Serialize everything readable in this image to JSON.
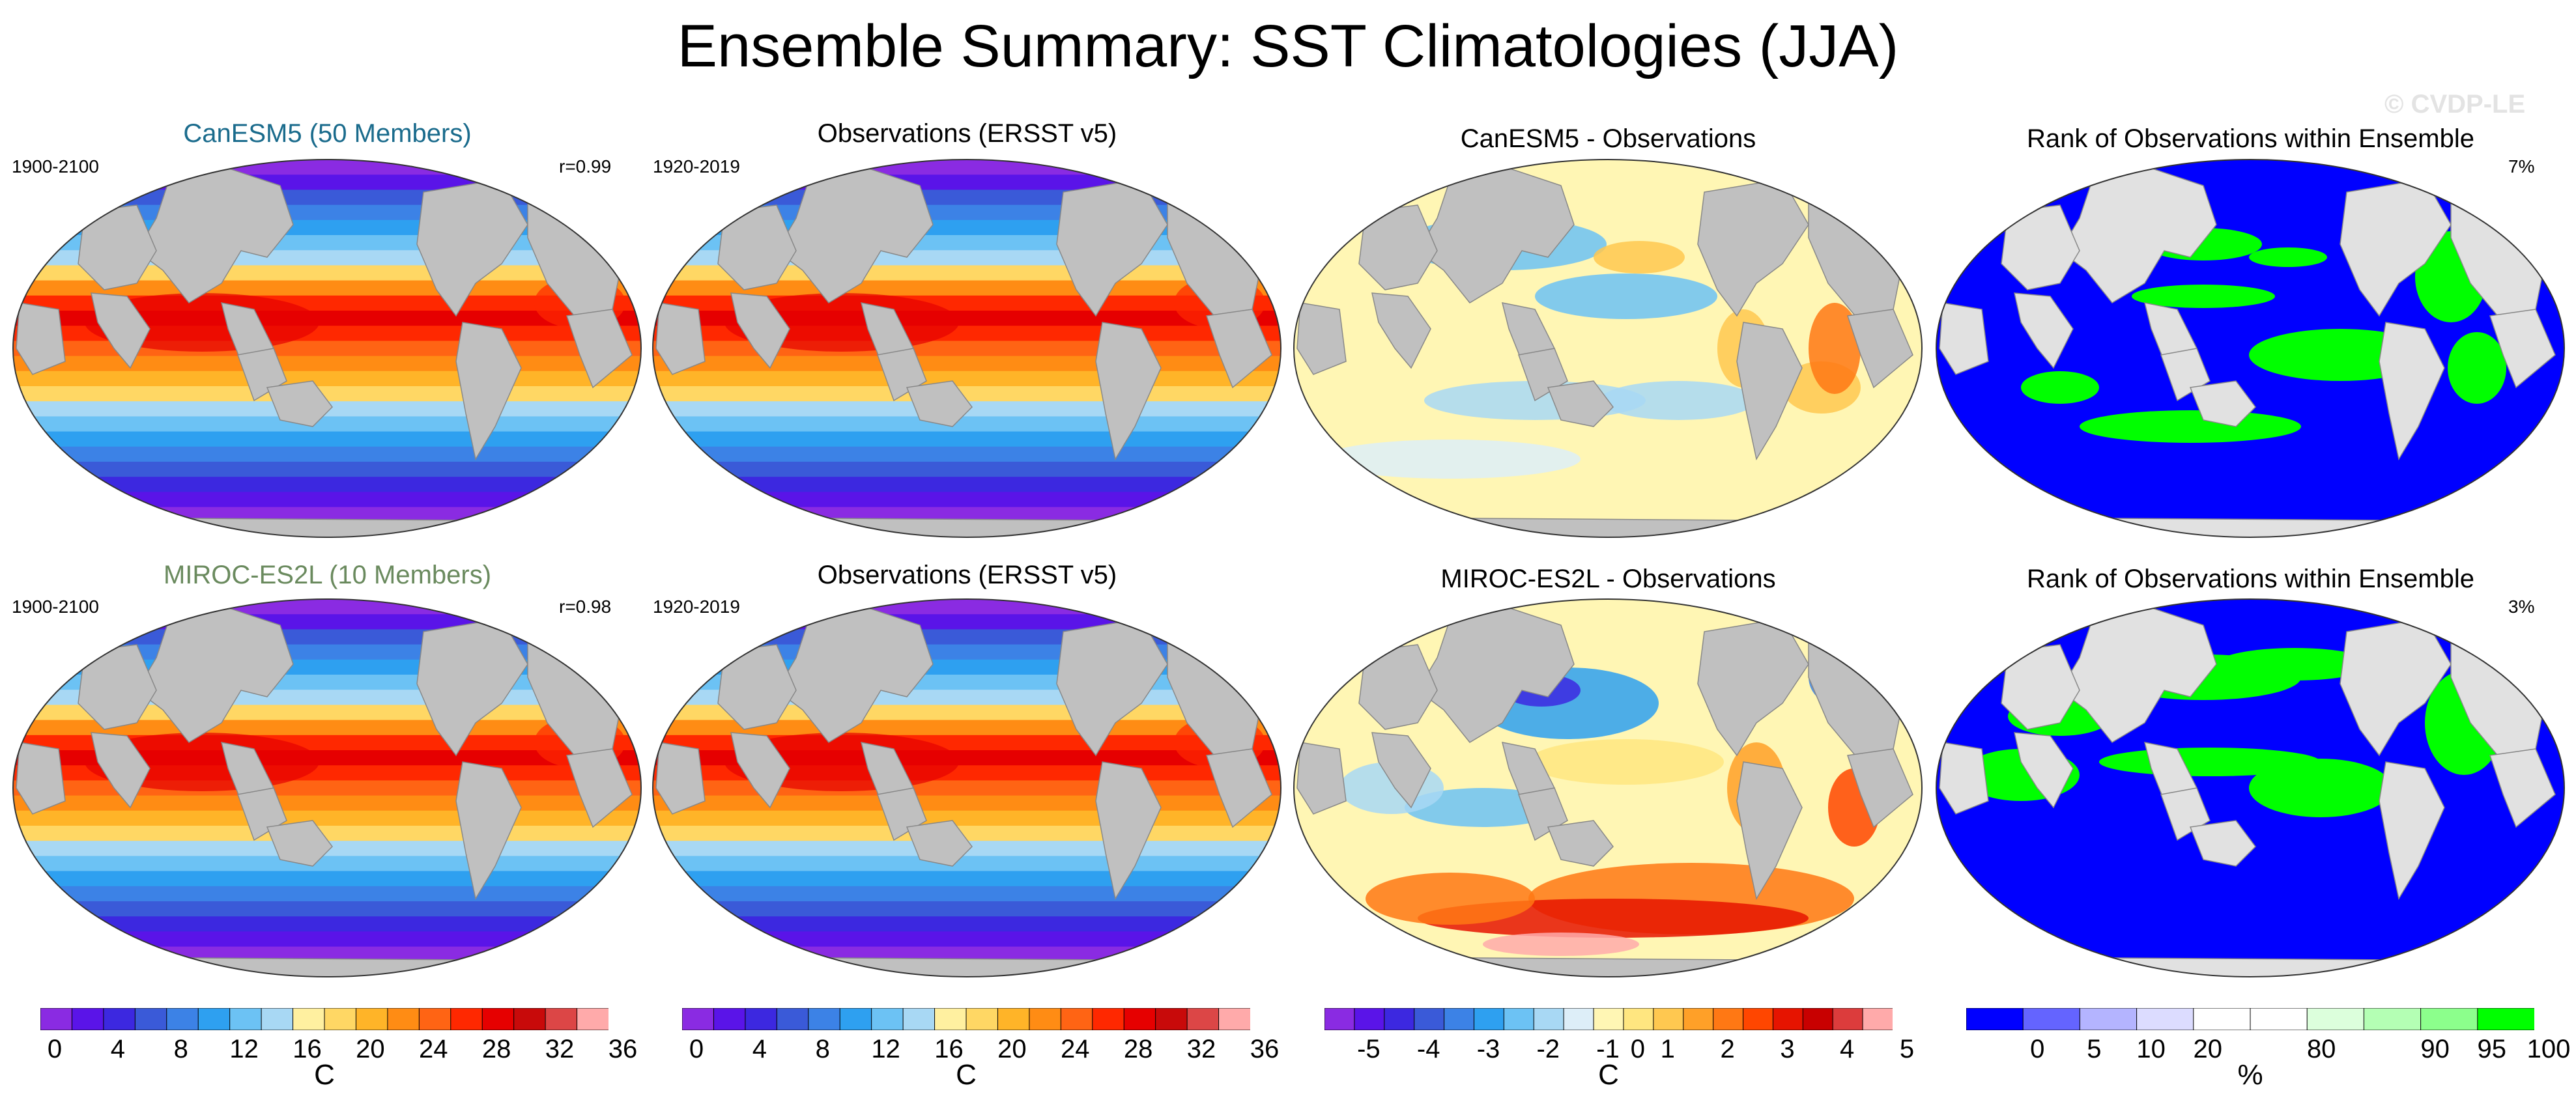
{
  "title": "Ensemble Summary: SST Climatologies (JJA)",
  "watermark": "© CVDP-LE",
  "colors": {
    "land": "#c0c0c0",
    "land_light": "#e1e1e1",
    "model1_title": "#1a6b8c",
    "model2_title": "#6a8a5e"
  },
  "rows": [
    {
      "panels": [
        {
          "title": "CanESM5 (50 Members)",
          "left": "1900-2100",
          "right": "r=0.99",
          "kind": "sst"
        },
        {
          "title": "Observations (ERSST v5)",
          "left": "1920-2019",
          "right": "",
          "kind": "sst"
        },
        {
          "title": "CanESM5 - Observations",
          "left": "",
          "right": "",
          "kind": "diff1"
        },
        {
          "title": "Rank of Observations within Ensemble",
          "left": "",
          "right": "7%",
          "kind": "rank1"
        }
      ]
    },
    {
      "panels": [
        {
          "title": "MIROC-ES2L (10 Members)",
          "left": "1900-2100",
          "right": "r=0.98",
          "kind": "sst"
        },
        {
          "title": "Observations (ERSST v5)",
          "left": "1920-2019",
          "right": "",
          "kind": "sst"
        },
        {
          "title": "MIROC-ES2L - Observations",
          "left": "",
          "right": "",
          "kind": "diff2"
        },
        {
          "title": "Rank of Observations within Ensemble",
          "left": "",
          "right": "3%",
          "kind": "rank2"
        }
      ]
    }
  ],
  "colorbars": [
    {
      "name": "sst-colorbar-1",
      "unit": "C",
      "colors": [
        "#8a2be2",
        "#5a14e8",
        "#3c28e0",
        "#3a5ad8",
        "#3c82e6",
        "#2ea0f0",
        "#6cc2f4",
        "#a8d8f4",
        "#fff0a0",
        "#ffd764",
        "#ffb428",
        "#ff8c14",
        "#ff6414",
        "#ff2800",
        "#e60000",
        "#c80a0a",
        "#dc4646",
        "#ffaaaa"
      ],
      "labels": [
        "0",
        "4",
        "8",
        "12",
        "16",
        "20",
        "24",
        "28",
        "32",
        "36"
      ]
    },
    {
      "name": "sst-colorbar-2",
      "unit": "C",
      "colors": [
        "#8a2be2",
        "#5a14e8",
        "#3c28e0",
        "#3a5ad8",
        "#3c82e6",
        "#2ea0f0",
        "#6cc2f4",
        "#a8d8f4",
        "#fff0a0",
        "#ffd764",
        "#ffb428",
        "#ff8c14",
        "#ff6414",
        "#ff2800",
        "#e60000",
        "#c80a0a",
        "#dc4646",
        "#ffaaaa"
      ],
      "labels": [
        "0",
        "4",
        "8",
        "12",
        "16",
        "20",
        "24",
        "28",
        "32",
        "36"
      ]
    },
    {
      "name": "diff-colorbar",
      "unit": "C",
      "colors": [
        "#8a2be2",
        "#5a14e8",
        "#3c28e0",
        "#3a5ad8",
        "#3c82e6",
        "#2ea0f0",
        "#6cc2f4",
        "#a8d8f4",
        "#ddeef8",
        "#fff6b4",
        "#ffe680",
        "#ffc850",
        "#ffa028",
        "#ff7814",
        "#ff4600",
        "#e61400",
        "#c80000",
        "#dc3c3c",
        "#ffaaaa"
      ],
      "labels": [
        "-5",
        "-4",
        "-3",
        "-2",
        "-1",
        "0",
        "1",
        "2",
        "3",
        "4",
        "5"
      ]
    },
    {
      "name": "rank-colorbar",
      "unit": "%",
      "colors": [
        "#0000ff",
        "#6464ff",
        "#b4b4ff",
        "#dcdcff",
        "#ffffff",
        "#ffffff",
        "#dcffdc",
        "#b4ffb4",
        "#8cff8c",
        "#00ff00"
      ],
      "labels": [
        "0",
        "5",
        "10",
        "20",
        "80",
        "90",
        "95",
        "100"
      ]
    }
  ]
}
